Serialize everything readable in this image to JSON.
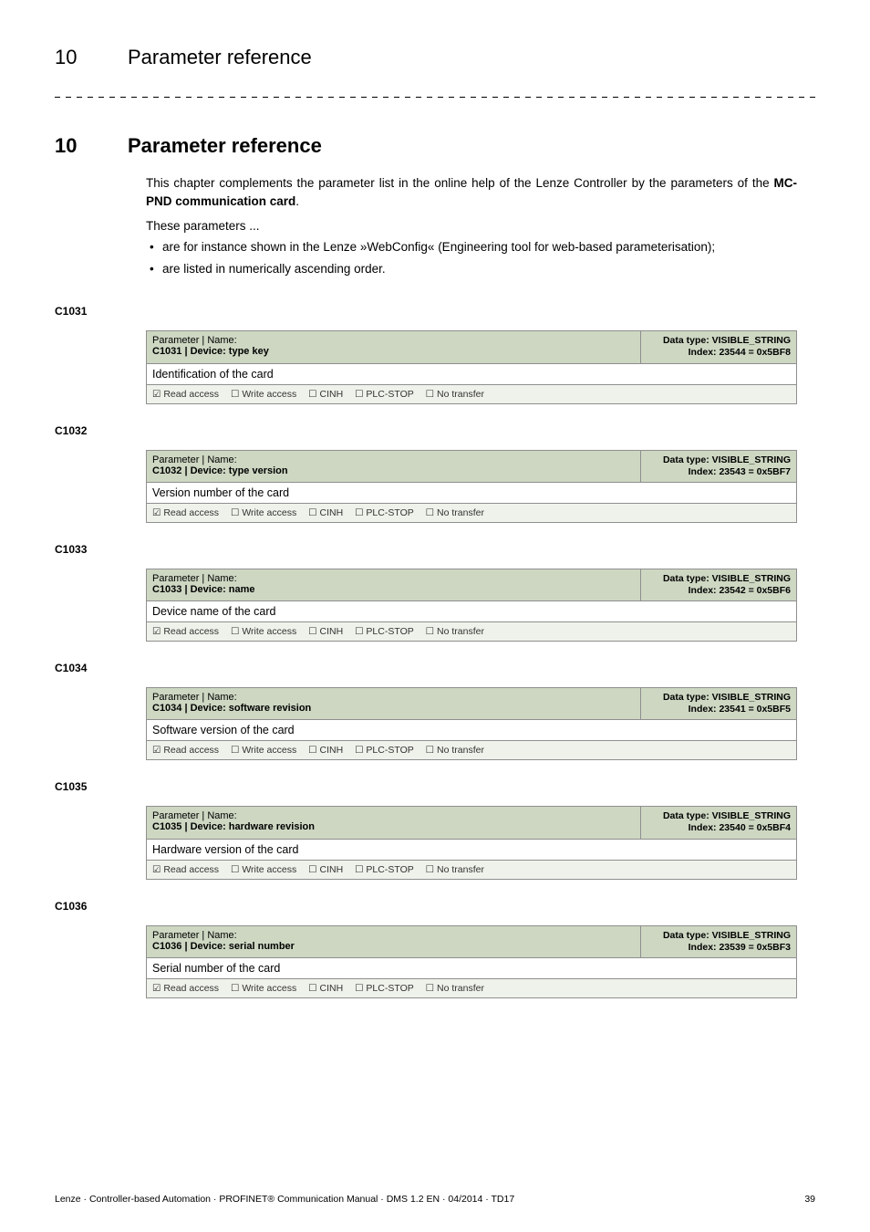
{
  "runningHeader": {
    "num": "10",
    "title": "Parameter reference"
  },
  "heading": {
    "num": "10",
    "title": "Parameter reference"
  },
  "intro": {
    "pre": "This chapter complements the parameter list in the online help of the Lenze Controller by the parameters of the ",
    "bold": "MC-PND communication card",
    "post": "."
  },
  "lead": "These parameters ...",
  "bullets": [
    "are for instance shown in the Lenze »WebConfig« (Engineering tool for web-based parameterisation);",
    "are listed in numerically ascending order."
  ],
  "accessLabels": {
    "read": "Read access",
    "write": "Write access",
    "cinh": "CINH",
    "plc": "PLC-STOP",
    "notransfer": "No transfer"
  },
  "dataTypeLabel": "Data type:",
  "indexLabel": "Index:",
  "paramNameLabel": "Parameter | Name:",
  "params": [
    {
      "code": "C1031",
      "name": "C1031 | Device: type key",
      "desc": "Identification of the card",
      "dtype": "VISIBLE_STRING",
      "index": "23544 = 0x5BF8"
    },
    {
      "code": "C1032",
      "name": "C1032 | Device: type version",
      "desc": "Version number of the card",
      "dtype": "VISIBLE_STRING",
      "index": "23543 = 0x5BF7"
    },
    {
      "code": "C1033",
      "name": "C1033 | Device: name",
      "desc": "Device name of the card",
      "dtype": "VISIBLE_STRING",
      "index": "23542 = 0x5BF6"
    },
    {
      "code": "C1034",
      "name": "C1034 | Device: software revision",
      "desc": "Software version of the card",
      "dtype": "VISIBLE_STRING",
      "index": "23541 = 0x5BF5"
    },
    {
      "code": "C1035",
      "name": "C1035 | Device: hardware revision",
      "desc": "Hardware version of the card",
      "dtype": "VISIBLE_STRING",
      "index": "23540 = 0x5BF4"
    },
    {
      "code": "C1036",
      "name": "C1036 | Device: serial number",
      "desc": "Serial number of the card",
      "dtype": "VISIBLE_STRING",
      "index": "23539 = 0x5BF3"
    }
  ],
  "footer": {
    "text": "Lenze · Controller-based Automation · PROFINET® Communication Manual · DMS 1.2 EN · 04/2014 · TD17",
    "page": "39"
  }
}
